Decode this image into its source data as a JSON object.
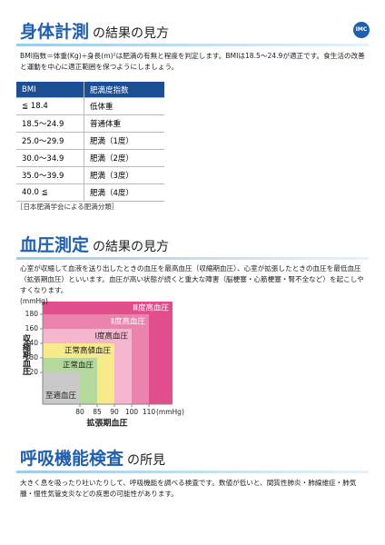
{
  "logo": "IMC",
  "sections": [
    {
      "title_main": "身体計測",
      "title_rest": "の結果の見方",
      "text": "BMI指数＝体重(Kg)÷身長(m)²は肥満の有無と程度を判定します。BMIは18.5～24.9が適正です。食生活の改善と運動を中心に適正範囲を保つようにしましょう。"
    },
    {
      "title_main": "血圧測定",
      "title_rest": "の結果の見方",
      "text": "心室が収縮して血液を送り出したときの血圧を最高血圧（収縮期血圧）、心室が拡張したときの血圧を最低血圧（拡張期血圧）といいます。血圧が高い状態が続くと重大な障害（脳梗塞・心筋梗塞・腎不全など）を起こしやすくなります。"
    },
    {
      "title_main": "呼吸機能検査",
      "title_rest": "の所見",
      "text": "大きく息を吸ったり吐いたりして、呼吸機能を調べる検査です。数値が低いと、間質性肺炎・肺線維症・肺気腫・慢性気管支炎などの疾患の可能性があります。"
    }
  ],
  "bmi_table": {
    "header": [
      "BMI",
      "肥満度指数"
    ],
    "rows": [
      [
        "≦ 18.4",
        "低体重"
      ],
      [
        "18.5～24.9",
        "普通体重"
      ],
      [
        "25.0～29.9",
        "肥満（1度）"
      ],
      [
        "30.0～34.9",
        "肥満（2度）"
      ],
      [
        "35.0～39.9",
        "肥満（3度）"
      ],
      [
        "40.0 ≦",
        "肥満（4度）"
      ]
    ],
    "note": "［日本肥満学会による肥満分類］"
  },
  "bp_chart": {
    "y_unit": "(mmHg)",
    "y_label": "収縮期血圧",
    "x_label": "拡張期血圧",
    "x_unit": "(mmHg)",
    "xticks": [
      80,
      85,
      90,
      100,
      110
    ],
    "yticks": [
      120,
      130,
      140,
      160,
      180
    ],
    "zones": [
      {
        "label": "至適血圧",
        "color": "#c9c9c9",
        "text_color": "#222"
      },
      {
        "label": "正常血圧",
        "color": "#b5d99c",
        "text_color": "#222"
      },
      {
        "label": "正常高値血圧",
        "color": "#f6ea8a",
        "text_color": "#222"
      },
      {
        "label": "Ⅰ度高血圧",
        "color": "#f5b6cd",
        "text_color": "#222"
      },
      {
        "label": "Ⅱ度高血圧",
        "color": "#ec82ae",
        "text_color": "#fff"
      },
      {
        "label": "Ⅲ度高血圧",
        "color": "#e04e8c",
        "text_color": "#fff"
      }
    ]
  }
}
